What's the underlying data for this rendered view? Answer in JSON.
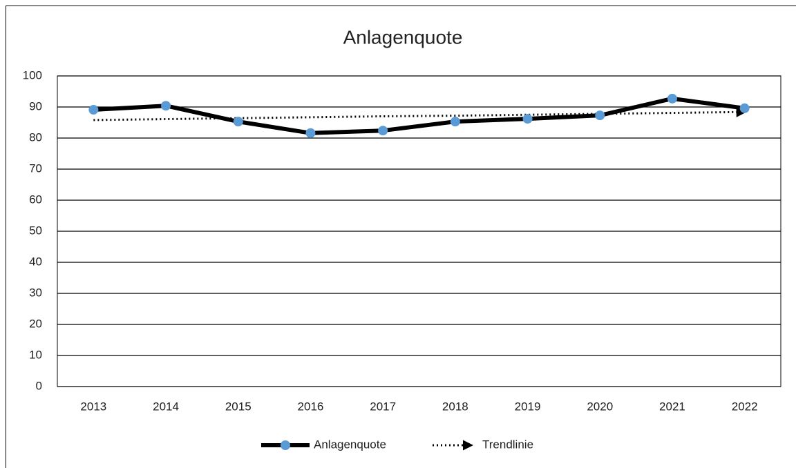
{
  "chart_data": {
    "type": "line",
    "title": "Anlagenquote",
    "categories": [
      "2013",
      "2014",
      "2015",
      "2016",
      "2017",
      "2018",
      "2019",
      "2020",
      "2021",
      "2022"
    ],
    "series": [
      {
        "name": "Anlagenquote",
        "color": "#000000",
        "marker_color": "#5b9bd5",
        "values": [
          89.1,
          90.4,
          85.3,
          81.6,
          82.4,
          85.3,
          86.2,
          87.3,
          92.7,
          89.6
        ]
      },
      {
        "name": "Trendlinie",
        "color": "#000000",
        "values": [
          85.8,
          86.1,
          86.4,
          86.7,
          87.0,
          87.2,
          87.5,
          87.8,
          88.1,
          88.4
        ]
      }
    ],
    "ylim": [
      0,
      100
    ],
    "yticks": [
      0,
      10,
      20,
      30,
      40,
      50,
      60,
      70,
      80,
      90,
      100
    ],
    "grid": true,
    "legend": "bottom"
  }
}
